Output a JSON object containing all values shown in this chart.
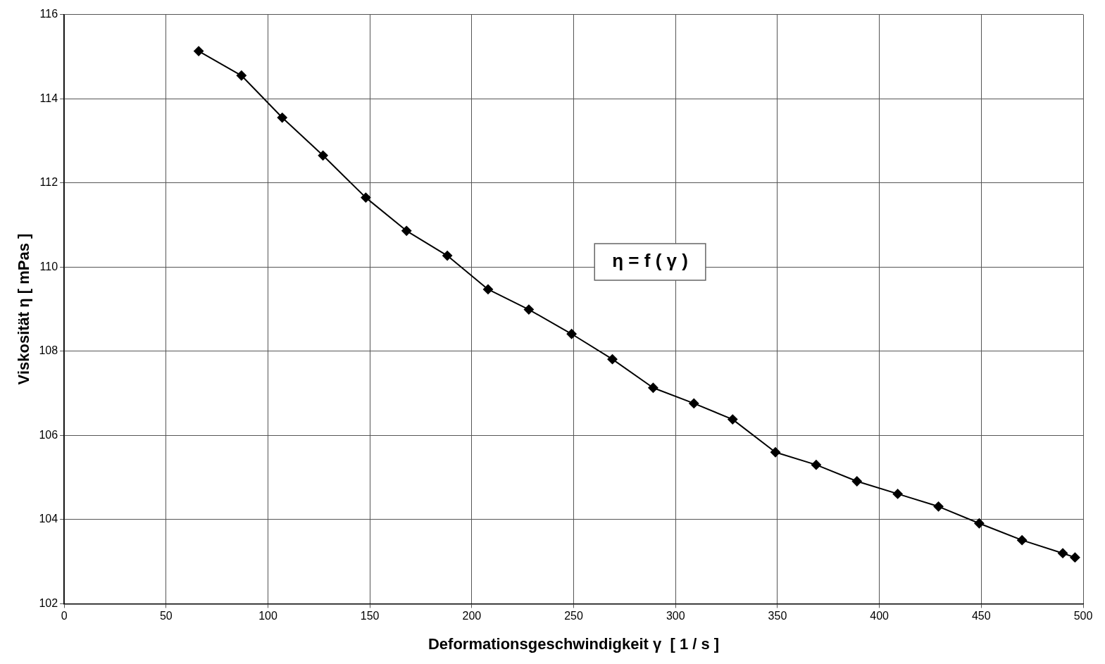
{
  "chart_data": {
    "type": "line",
    "xlabel": "Deformationsgeschwindigkeit γ  [ 1 / s ]",
    "ylabel": "Viskosität η [ mPas ]",
    "annotations": [
      "η = f ( γ )"
    ],
    "x": [
      66,
      87,
      107,
      127,
      148,
      168,
      188,
      208,
      228,
      249,
      269,
      289,
      309,
      328,
      349,
      369,
      389,
      409,
      429,
      449,
      470,
      490,
      496
    ],
    "series": [
      {
        "color": "#000000",
        "values": [
          115.13,
          114.55,
          113.55,
          112.65,
          111.65,
          110.86,
          110.27,
          109.47,
          108.99,
          108.41,
          107.81,
          107.13,
          106.76,
          106.38,
          105.6,
          105.3,
          104.91,
          104.61,
          104.31,
          103.91,
          103.51,
          103.2,
          103.1
        ]
      }
    ],
    "xlim": [
      0,
      500
    ],
    "xticks": [
      0,
      50,
      100,
      150,
      200,
      250,
      300,
      350,
      400,
      450,
      500
    ],
    "ylim": [
      102,
      116
    ],
    "yticks": [
      102,
      104,
      106,
      108,
      110,
      112,
      114,
      116
    ],
    "grid": true,
    "legend": false,
    "marker": "diamond",
    "line_style": "solid"
  }
}
